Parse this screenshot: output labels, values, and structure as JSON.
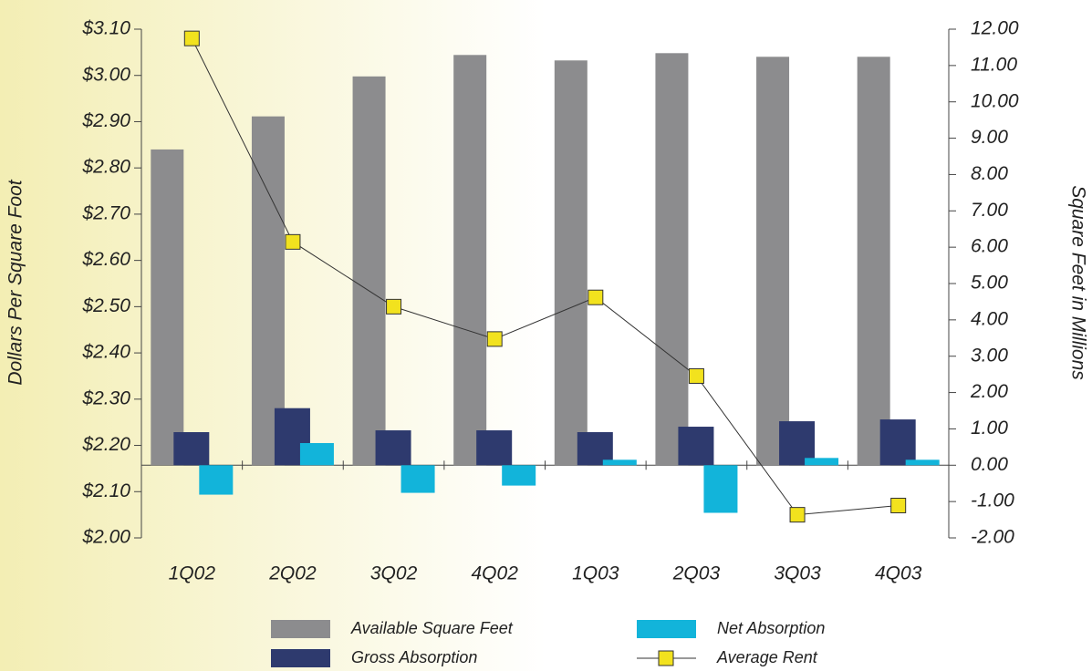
{
  "chart_data": {
    "type": "bar",
    "categories": [
      "1Q02",
      "2Q02",
      "3Q02",
      "4Q02",
      "1Q03",
      "2Q03",
      "3Q03",
      "4Q03"
    ],
    "ylabel": "Dollars Per Square Foot",
    "y2label": "Square Feet in Millions",
    "ylim": [
      2.0,
      3.1
    ],
    "yticks": [
      {
        "value": 2.0,
        "label": "$2.00"
      },
      {
        "value": 2.1,
        "label": "$2.10"
      },
      {
        "value": 2.2,
        "label": "$2.20"
      },
      {
        "value": 2.3,
        "label": "$2.30"
      },
      {
        "value": 2.4,
        "label": "$2.40"
      },
      {
        "value": 2.5,
        "label": "$2.50"
      },
      {
        "value": 2.6,
        "label": "$2.60"
      },
      {
        "value": 2.7,
        "label": "$2.70"
      },
      {
        "value": 2.8,
        "label": "$2.80"
      },
      {
        "value": 2.9,
        "label": "$2.90"
      },
      {
        "value": 3.0,
        "label": "$3.00"
      },
      {
        "value": 3.1,
        "label": "$3.10"
      }
    ],
    "y2lim": [
      -2.0,
      12.0
    ],
    "y2ticks": [
      {
        "value": -2,
        "label": "-2.00"
      },
      {
        "value": -1,
        "label": "-1.00"
      },
      {
        "value": 0,
        "label": "0.00"
      },
      {
        "value": 1,
        "label": "1.00"
      },
      {
        "value": 2,
        "label": "2.00"
      },
      {
        "value": 3,
        "label": "3.00"
      },
      {
        "value": 4,
        "label": "4.00"
      },
      {
        "value": 5,
        "label": "5.00"
      },
      {
        "value": 6,
        "label": "6.00"
      },
      {
        "value": 7,
        "label": "7.00"
      },
      {
        "value": 8,
        "label": "8.00"
      },
      {
        "value": 9,
        "label": "9.00"
      },
      {
        "value": 10,
        "label": "10.00"
      },
      {
        "value": 11,
        "label": "11.00"
      },
      {
        "value": 12,
        "label": "12.00"
      }
    ],
    "series": [
      {
        "name": "Available Square Feet",
        "type": "bar",
        "axis": "y2",
        "color": "#8c8c8e",
        "values": [
          8.69,
          9.6,
          10.7,
          11.29,
          11.14,
          11.34,
          11.24,
          11.24
        ]
      },
      {
        "name": "Gross Absorption",
        "type": "bar",
        "axis": "y2",
        "color": "#2e3a6e",
        "values": [
          0.91,
          1.57,
          0.96,
          0.96,
          0.91,
          1.06,
          1.21,
          1.26
        ]
      },
      {
        "name": "Net Absorption",
        "type": "bar",
        "axis": "y2",
        "color": "#12b4da",
        "values": [
          -0.81,
          0.61,
          -0.76,
          -0.56,
          0.15,
          -1.31,
          0.2,
          0.15
        ]
      },
      {
        "name": "Average Rent",
        "type": "line",
        "color": "#f2e21e",
        "values": [
          3.08,
          2.64,
          2.5,
          2.43,
          2.52,
          2.35,
          2.05,
          2.07
        ]
      }
    ]
  }
}
